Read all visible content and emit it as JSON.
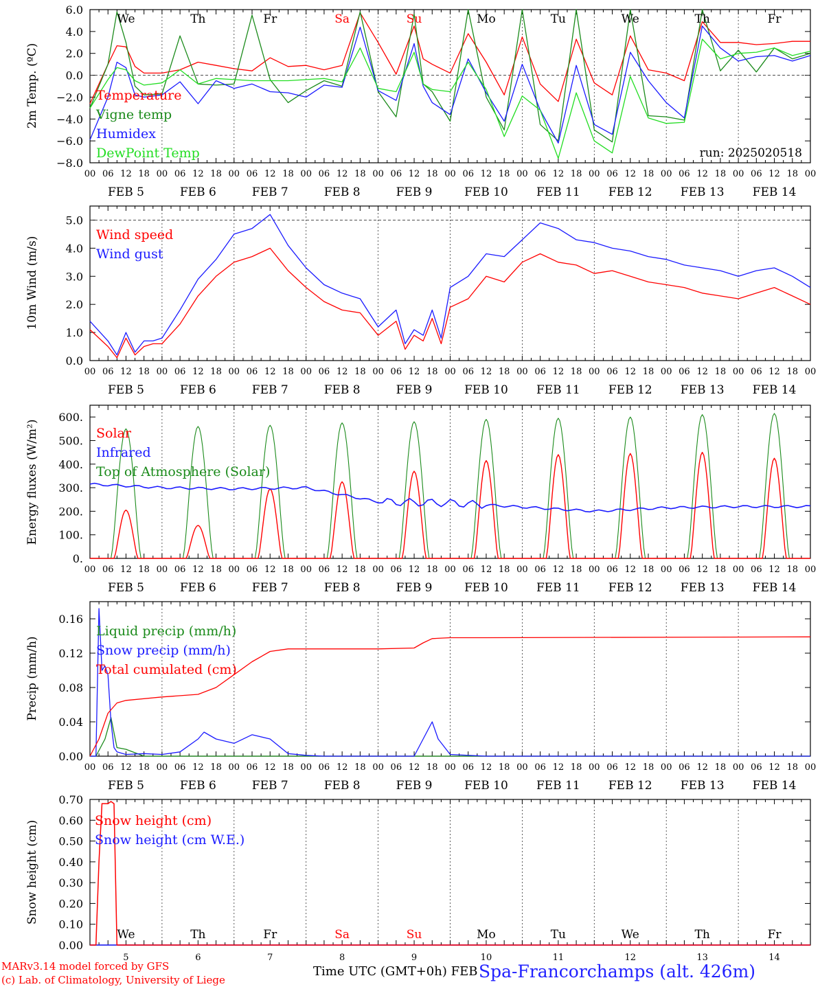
{
  "meta": {
    "run_label": "run: 2025020518",
    "footer_line1": "MARv3.14 model forced by GFS",
    "footer_line2": "(c) Lab. of Climatology, University of Liege",
    "x_title": "Time UTC (GMT+0h) FEB",
    "station": "Spa-Francorchamps (alt. 426m)"
  },
  "colors": {
    "red": "#ff0000",
    "green": "#1a8a1a",
    "blue": "#1a1aff",
    "lightgreen": "#22dd22"
  },
  "days": [
    "We",
    "Th",
    "Fr",
    "Sa",
    "Su",
    "Mo",
    "Tu",
    "We",
    "Th",
    "Fr"
  ],
  "weekend_days": [
    "Sa",
    "Su"
  ],
  "dates": [
    "FEB  5",
    "FEB  6",
    "FEB  7",
    "FEB  8",
    "FEB  9",
    "FEB 10",
    "FEB 11",
    "FEB 12",
    "FEB 13",
    "FEB 14"
  ],
  "bottom_dates": [
    "5",
    "6",
    "7",
    "8",
    "9",
    "10",
    "11",
    "12",
    "13",
    "14"
  ],
  "hour_ticks": [
    "00",
    "06",
    "12",
    "18"
  ],
  "chart_data": [
    {
      "type": "line",
      "ylabel": "2m Temp. (ºC)",
      "ylim": [
        -8,
        6
      ],
      "yticks": [
        "6.0",
        "4.0",
        "2.0",
        "0.0",
        "−2.0",
        "−4.0",
        "−6.0",
        "−8.0"
      ],
      "ytick_values": [
        6,
        4,
        2,
        0,
        -2,
        -4,
        -6,
        -8
      ],
      "ref_line": 0,
      "x_unit": "hours since FEB 5 00 UTC",
      "series": [
        {
          "name": "Temperature",
          "color": "red",
          "x": [
            0,
            6,
            9,
            12,
            15,
            18,
            24,
            30,
            36,
            42,
            48,
            54,
            60,
            66,
            72,
            78,
            84,
            90,
            96,
            102,
            108,
            111,
            114,
            120,
            126,
            132,
            138,
            144,
            150,
            156,
            162,
            168,
            174,
            180,
            186,
            192,
            198,
            204,
            210,
            216,
            222,
            228,
            234,
            240
          ],
          "values": [
            -2.6,
            1.0,
            2.7,
            2.6,
            0.8,
            0.2,
            0.2,
            0.5,
            1.2,
            0.9,
            0.6,
            0.4,
            1.6,
            0.8,
            0.9,
            0.5,
            0.9,
            5.7,
            3.0,
            0.1,
            4.5,
            1.5,
            1.0,
            0.2,
            3.8,
            1.2,
            -1.8,
            3.5,
            -0.8,
            -2.4,
            3.3,
            -0.7,
            -1.8,
            3.6,
            0.5,
            0.2,
            -0.5,
            4.9,
            3.0,
            3.0,
            2.8,
            2.9,
            3.1,
            3.1
          ]
        },
        {
          "name": "Vigne temp",
          "color": "green",
          "x": [
            0,
            6,
            9,
            12,
            15,
            18,
            24,
            30,
            36,
            42,
            48,
            54,
            60,
            66,
            72,
            78,
            84,
            90,
            96,
            102,
            108,
            111,
            114,
            120,
            126,
            132,
            138,
            144,
            150,
            156,
            162,
            168,
            174,
            180,
            186,
            192,
            198,
            204,
            210,
            216,
            222,
            228,
            234,
            240
          ],
          "values": [
            -3.0,
            1.0,
            5.8,
            3.0,
            -1.0,
            -1.8,
            -1.7,
            3.6,
            -0.8,
            -0.9,
            -0.8,
            5.5,
            -0.4,
            -2.5,
            -1.4,
            -0.5,
            -1.0,
            5.8,
            -1.5,
            -3.8,
            5.6,
            -0.8,
            -1.5,
            -4.2,
            6.0,
            -2.0,
            -5.0,
            6.0,
            -4.5,
            -6.0,
            6.0,
            -5.0,
            -6.1,
            6.0,
            -3.7,
            -3.8,
            -4.1,
            6.0,
            0.4,
            2.3,
            0.3,
            2.5,
            1.5,
            2.0
          ]
        },
        {
          "name": "Humidex",
          "color": "blue",
          "x": [
            0,
            6,
            9,
            12,
            15,
            18,
            24,
            30,
            36,
            42,
            48,
            54,
            60,
            66,
            72,
            78,
            84,
            90,
            96,
            102,
            108,
            111,
            114,
            120,
            126,
            132,
            138,
            144,
            150,
            156,
            162,
            168,
            174,
            180,
            186,
            192,
            198,
            204,
            210,
            216,
            222,
            228,
            234,
            240
          ],
          "values": [
            -5.9,
            -2.0,
            1.2,
            0.7,
            -1.8,
            -2.0,
            -1.8,
            -0.6,
            -2.6,
            -0.5,
            -1.2,
            -0.8,
            -1.5,
            -1.6,
            -2.0,
            -0.9,
            -1.1,
            4.4,
            -1.4,
            -2.3,
            2.9,
            -1.0,
            -2.5,
            -3.6,
            1.5,
            -1.6,
            -4.2,
            1.0,
            -3.2,
            -6.2,
            0.9,
            -4.5,
            -5.4,
            2.1,
            -0.5,
            -2.5,
            -3.9,
            4.5,
            2.5,
            1.3,
            1.7,
            1.8,
            1.3,
            1.8
          ]
        },
        {
          "name": "DewPoint Temp",
          "color": "lightgreen",
          "x": [
            0,
            6,
            9,
            12,
            15,
            18,
            24,
            30,
            36,
            42,
            48,
            54,
            60,
            66,
            72,
            78,
            84,
            90,
            96,
            102,
            108,
            111,
            114,
            120,
            126,
            132,
            138,
            144,
            150,
            156,
            162,
            168,
            174,
            180,
            186,
            192,
            198,
            204,
            210,
            216,
            222,
            228,
            234,
            240
          ],
          "values": [
            -3.0,
            -0.4,
            0.7,
            0.5,
            -0.5,
            -0.9,
            -0.7,
            0.5,
            -0.8,
            -0.3,
            -0.4,
            -0.5,
            -0.5,
            -0.5,
            -0.4,
            -0.3,
            -0.6,
            2.5,
            -1.2,
            -1.5,
            2.1,
            -0.8,
            -1.3,
            -1.5,
            1.2,
            -1.3,
            -5.6,
            -1.9,
            -3.2,
            -7.6,
            -1.6,
            -6.0,
            -7.1,
            -0.1,
            -3.9,
            -4.4,
            -4.3,
            3.3,
            1.5,
            2.0,
            2.1,
            2.5,
            1.8,
            2.2
          ]
        }
      ]
    },
    {
      "type": "line",
      "ylabel": "10m Wind (m/s)",
      "ylim": [
        0,
        5.5
      ],
      "yticks": [
        "0.0",
        "1.0",
        "2.0",
        "3.0",
        "4.0",
        "5.0"
      ],
      "ytick_values": [
        0,
        1,
        2,
        3,
        4,
        5
      ],
      "ref_line": 5,
      "x_unit": "hours since FEB 5 00 UTC",
      "series": [
        {
          "name": "Wind speed",
          "color": "red",
          "x": [
            0,
            6,
            9,
            12,
            15,
            18,
            21,
            24,
            30,
            36,
            42,
            48,
            54,
            60,
            66,
            72,
            78,
            84,
            90,
            96,
            102,
            105,
            108,
            111,
            114,
            117,
            120,
            126,
            132,
            138,
            144,
            150,
            156,
            162,
            168,
            174,
            180,
            186,
            192,
            198,
            204,
            210,
            216,
            222,
            228,
            234,
            240
          ],
          "values": [
            1.1,
            0.5,
            0.1,
            0.8,
            0.2,
            0.5,
            0.6,
            0.6,
            1.3,
            2.3,
            3.0,
            3.5,
            3.7,
            4.0,
            3.2,
            2.6,
            2.1,
            1.8,
            1.7,
            0.9,
            1.4,
            0.4,
            0.9,
            0.7,
            1.5,
            0.6,
            1.9,
            2.2,
            3.0,
            2.8,
            3.5,
            3.8,
            3.5,
            3.4,
            3.1,
            3.2,
            3.0,
            2.8,
            2.7,
            2.6,
            2.4,
            2.3,
            2.2,
            2.4,
            2.6,
            2.3,
            2.0
          ]
        },
        {
          "name": "Wind gust",
          "color": "blue",
          "x": [
            0,
            6,
            9,
            12,
            15,
            18,
            21,
            24,
            30,
            36,
            42,
            48,
            54,
            60,
            66,
            72,
            78,
            84,
            90,
            96,
            102,
            105,
            108,
            111,
            114,
            117,
            120,
            126,
            132,
            138,
            144,
            150,
            156,
            162,
            168,
            174,
            180,
            186,
            192,
            198,
            204,
            210,
            216,
            222,
            228,
            234,
            240
          ],
          "values": [
            1.4,
            0.7,
            0.2,
            1.0,
            0.3,
            0.7,
            0.7,
            0.8,
            1.8,
            2.9,
            3.6,
            4.5,
            4.7,
            5.2,
            4.1,
            3.3,
            2.7,
            2.4,
            2.2,
            1.2,
            1.8,
            0.6,
            1.1,
            0.9,
            1.8,
            0.8,
            2.6,
            3.0,
            3.8,
            3.7,
            4.3,
            4.9,
            4.7,
            4.3,
            4.2,
            4.0,
            3.9,
            3.7,
            3.6,
            3.4,
            3.3,
            3.2,
            3.0,
            3.2,
            3.3,
            3.0,
            2.6
          ]
        }
      ]
    },
    {
      "type": "line",
      "ylabel": "Energy fluxes (W/m²)",
      "ylim": [
        0,
        650
      ],
      "yticks": [
        "0.",
        "100.",
        "200.",
        "300.",
        "400.",
        "500.",
        "600."
      ],
      "ytick_values": [
        0,
        100,
        200,
        300,
        400,
        500,
        600
      ],
      "x_unit": "hours since FEB 5 00 UTC",
      "solar_peaks": [
        205,
        140,
        295,
        325,
        370,
        415,
        440,
        445,
        450,
        425
      ],
      "toa_peaks": [
        550,
        560,
        565,
        575,
        580,
        590,
        595,
        600,
        610,
        615
      ],
      "infrared": [
        315,
        300,
        295,
        300,
        240,
        235,
        218,
        200,
        215,
        220
      ],
      "legend": [
        "Solar",
        "Infrared",
        "Top of Atmosphere (Solar)"
      ],
      "series_colors": [
        "red",
        "blue",
        "green"
      ]
    },
    {
      "type": "line",
      "ylabel": "Precip (mm/h)",
      "ylim": [
        0,
        0.18
      ],
      "yticks": [
        "0.00",
        "0.04",
        "0.08",
        "0.12",
        "0.16"
      ],
      "ytick_values": [
        0,
        0.04,
        0.08,
        0.12,
        0.16
      ],
      "x_unit": "hours since FEB 5 00 UTC",
      "series": [
        {
          "name": "Liquid precip (mm/h)",
          "color": "green",
          "x": [
            0,
            2,
            5,
            7,
            9,
            12,
            18,
            240
          ],
          "values": [
            0,
            0,
            0.02,
            0.045,
            0.01,
            0.008,
            0,
            0
          ]
        },
        {
          "name": "Snow precip (mm/h)",
          "color": "blue",
          "x": [
            0,
            2,
            3,
            4,
            5,
            6,
            7,
            8,
            9,
            12,
            18,
            24,
            30,
            36,
            38,
            42,
            48,
            54,
            60,
            66,
            72,
            78,
            84,
            96,
            108,
            114,
            116,
            120,
            132,
            240
          ],
          "values": [
            0,
            0,
            0.172,
            0.1,
            0.105,
            0.095,
            0.04,
            0.01,
            0.005,
            0.002,
            0.003,
            0.002,
            0.005,
            0.02,
            0.028,
            0.02,
            0.015,
            0.025,
            0.02,
            0.003,
            0.001,
            0,
            0,
            0,
            0,
            0.04,
            0.02,
            0.002,
            0,
            0
          ]
        },
        {
          "name": "Total cumulated (cm)",
          "color": "red",
          "x": [
            0,
            3,
            6,
            9,
            12,
            24,
            36,
            42,
            48,
            54,
            60,
            66,
            72,
            84,
            96,
            108,
            111,
            114,
            120,
            132,
            240
          ],
          "values": [
            0,
            0.02,
            0.05,
            0.062,
            0.065,
            0.069,
            0.072,
            0.08,
            0.095,
            0.11,
            0.122,
            0.125,
            0.125,
            0.125,
            0.125,
            0.126,
            0.132,
            0.137,
            0.138,
            0.138,
            0.139
          ]
        }
      ]
    },
    {
      "type": "line",
      "ylabel": "Snow height (cm)",
      "ylim": [
        0,
        0.7
      ],
      "yticks": [
        "0.00",
        "0.10",
        "0.20",
        "0.30",
        "0.40",
        "0.50",
        "0.60",
        "0.70"
      ],
      "ytick_values": [
        0,
        0.1,
        0.2,
        0.3,
        0.4,
        0.5,
        0.6,
        0.7
      ],
      "x_unit": "hours since FEB 5 00 UTC",
      "series": [
        {
          "name": "Snow height (cm)",
          "color": "red",
          "x": [
            0,
            2,
            3,
            4,
            6,
            7,
            8,
            9,
            240
          ],
          "values": [
            0,
            0,
            0.4,
            0.68,
            0.68,
            0.69,
            0.68,
            0,
            0
          ]
        },
        {
          "name": "Snow height (cm W.E.)",
          "color": "blue",
          "x": [
            0,
            240
          ],
          "values": [
            0,
            0
          ]
        }
      ]
    }
  ]
}
